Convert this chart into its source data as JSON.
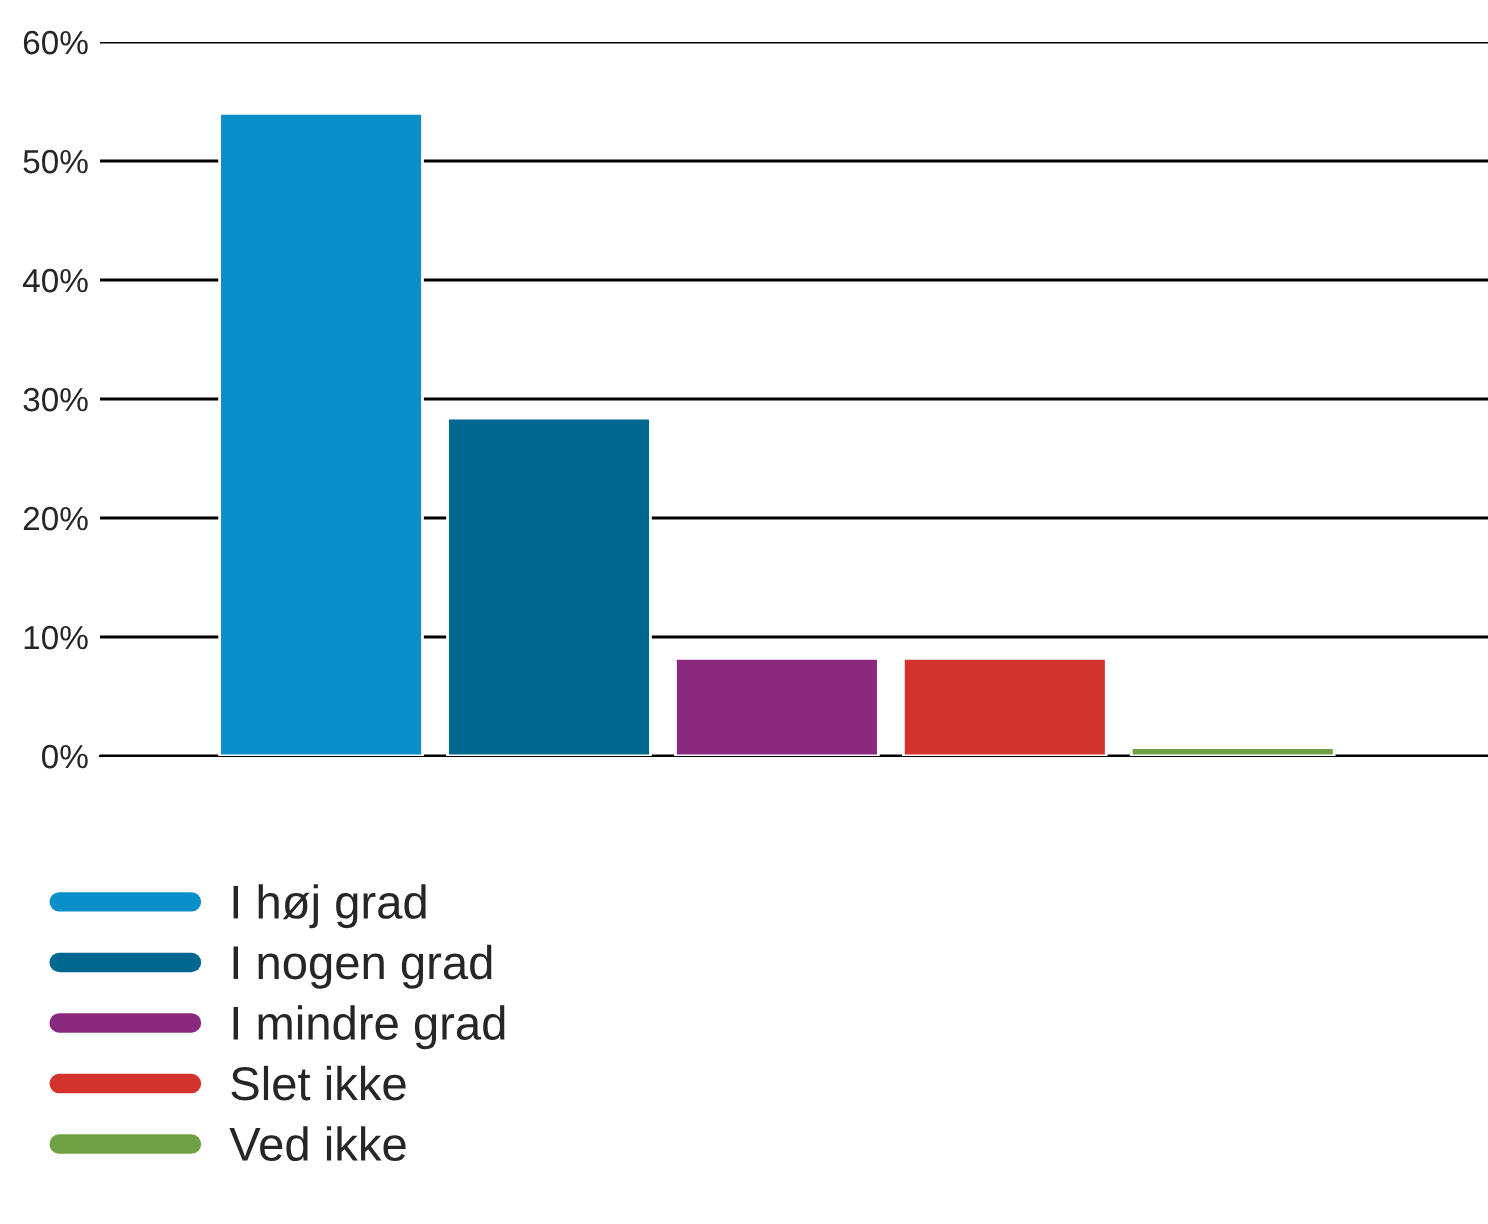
{
  "chart_data": {
    "type": "bar",
    "categories": [
      null,
      null,
      null,
      null,
      null
    ],
    "series": [
      {
        "name": "I høj grad",
        "color": "#0a8fc8",
        "values": [
          54,
          null,
          null,
          null,
          null
        ]
      },
      {
        "name": "I nogen grad",
        "color": "#00678e",
        "values": [
          null,
          28.4,
          null,
          null,
          null
        ]
      },
      {
        "name": "I mindre grad",
        "color": "#8a2a7e",
        "values": [
          null,
          null,
          8.2,
          null,
          null
        ]
      },
      {
        "name": "Slet ikke",
        "color": "#d2332d",
        "values": [
          null,
          null,
          null,
          8.2,
          null
        ]
      },
      {
        "name": "Ved ikke",
        "color": "#6ea144",
        "values": [
          null,
          null,
          null,
          null,
          0.7
        ]
      }
    ],
    "ylim": [
      0,
      60
    ],
    "yticks": [
      {
        "value": 0,
        "label": "0%"
      },
      {
        "value": 10,
        "label": "10%"
      },
      {
        "value": 20,
        "label": "20%"
      },
      {
        "value": 30,
        "label": "30%"
      },
      {
        "value": 40,
        "label": "40%"
      },
      {
        "value": 50,
        "label": "50%"
      },
      {
        "value": 60,
        "label": "60%"
      }
    ],
    "grid": "y",
    "legend": "bottom"
  }
}
